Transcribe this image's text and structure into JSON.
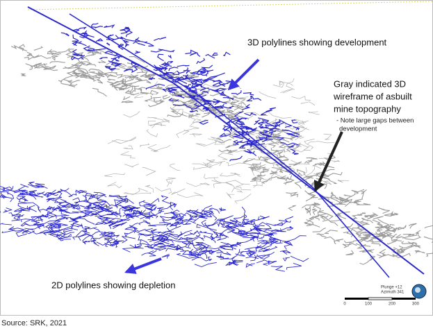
{
  "annotations": [
    {
      "lines": [
        "3D polylines showing development"
      ]
    },
    {
      "lines": [
        "Gray indicated 3D",
        "wireframe of asbuilt",
        "mine topography"
      ],
      "note": [
        "- Note large gaps between",
        "development"
      ]
    },
    {
      "lines": [
        "2D polylines showing depletion"
      ]
    }
  ],
  "orientation": {
    "plunge": "Plunge +12",
    "azimuth": "Azimuth 341"
  },
  "scale_bar": {
    "ticks": [
      0,
      100,
      200,
      300
    ]
  },
  "source": "Source: SRK, 2021"
}
